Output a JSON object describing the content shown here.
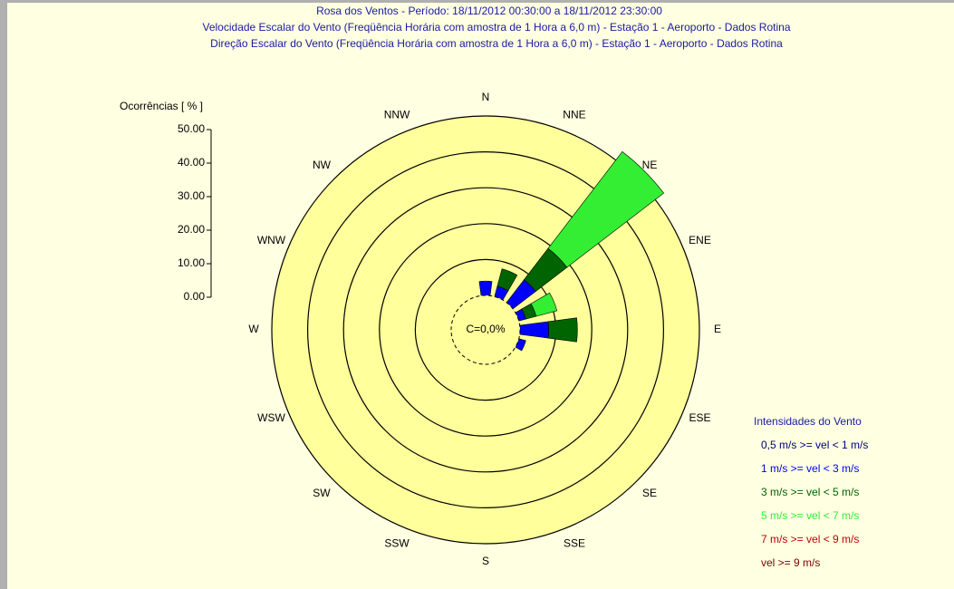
{
  "chart_data": {
    "type": "wind_rose",
    "title": "Rosa dos Ventos - Período: 18/11/2012 00:30:00 a 18/11/2012 23:30:00",
    "subtitles": [
      "Velocidade Escalar do Vento (Freqüência Horária com amostra de 1 Hora a 6,0 m) - Estação 1 - Aeroporto - Dados Rotina",
      "Direção Escalar do Vento (Freqüência Horária com amostra de 1 Hora a 6,0 m) - Estação 1 - Aeroporto - Dados Rotina"
    ],
    "y_label": "Ocorrências [ % ]",
    "calm_label": "C=0,0%",
    "legend_title": "Intensidades do Vento",
    "categories": [
      "N",
      "NNE",
      "NE",
      "ENE",
      "E",
      "ESE",
      "SE",
      "SSE",
      "S",
      "SSW",
      "SW",
      "WSW",
      "W",
      "WNW",
      "NW",
      "NNW"
    ],
    "ylim": [
      0,
      50
    ],
    "yticks": [
      {
        "value": 0,
        "label": "0.00"
      },
      {
        "value": 10,
        "label": "10.00"
      },
      {
        "value": 20,
        "label": "20.00"
      },
      {
        "value": 30,
        "label": "30.00"
      },
      {
        "value": 40,
        "label": "40.00"
      },
      {
        "value": 50,
        "label": "50.00"
      }
    ],
    "series": [
      {
        "name": "0,5 m/s >= vel < 1 m/s",
        "color": "#000080",
        "values": [
          0,
          0,
          0,
          0,
          0,
          0,
          0,
          0,
          0,
          0,
          0,
          0,
          0,
          0,
          0,
          0
        ]
      },
      {
        "name": "1 m/s >= vel < 3 m/s",
        "color": "#0000ff",
        "values": [
          4,
          3,
          8,
          2,
          8,
          2,
          0,
          0,
          0,
          0,
          0,
          0,
          0,
          0,
          0,
          0
        ]
      },
      {
        "name": "3 m/s >= vel < 5 m/s",
        "color": "#006400",
        "values": [
          0,
          5,
          11,
          3,
          8,
          0,
          0,
          0,
          0,
          0,
          0,
          0,
          0,
          0,
          0,
          0
        ]
      },
      {
        "name": "5 m/s >= vel < 7 m/s",
        "color": "#33ee33",
        "values": [
          0,
          0,
          34,
          6,
          0,
          0,
          0,
          0,
          0,
          0,
          0,
          0,
          0,
          0,
          0,
          0
        ]
      },
      {
        "name": "7 m/s >= vel < 9 m/s",
        "color": "#c00000",
        "values": [
          0,
          0,
          0,
          0,
          0,
          0,
          0,
          0,
          0,
          0,
          0,
          0,
          0,
          0,
          0,
          0
        ]
      },
      {
        "name": "vel >= 9 m/s",
        "color": "#800000",
        "values": [
          0,
          0,
          0,
          0,
          0,
          0,
          0,
          0,
          0,
          0,
          0,
          0,
          0,
          0,
          0,
          0
        ]
      }
    ]
  }
}
